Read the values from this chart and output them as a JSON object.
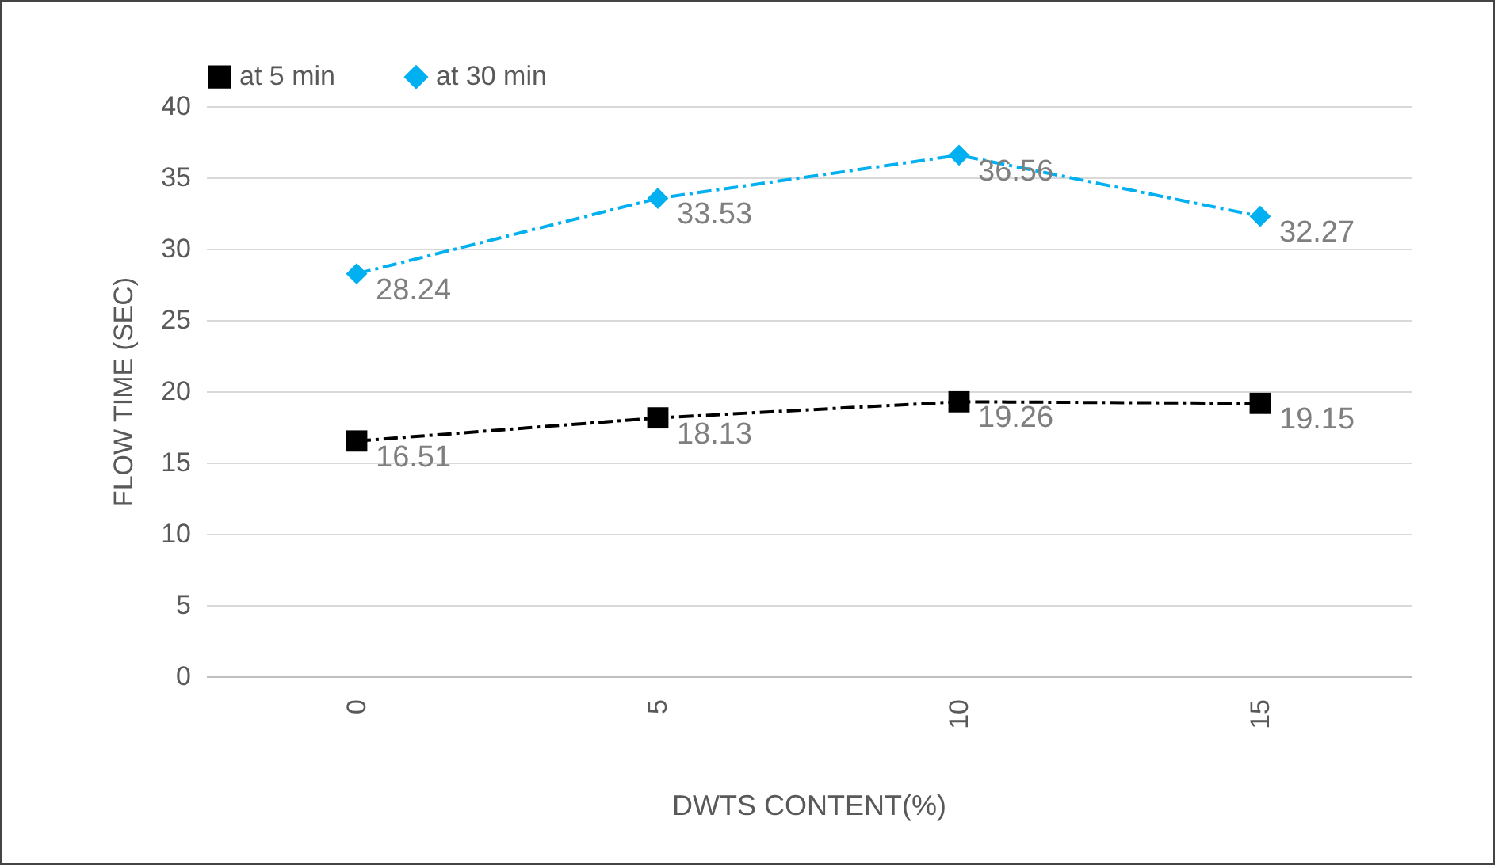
{
  "chart_data": {
    "type": "line",
    "xlabel": "DWTS CONTENT(%)",
    "ylabel": "FLOW TIME (SEC)",
    "categories": [
      "0",
      "5",
      "10",
      "15"
    ],
    "series": [
      {
        "name": "at 5 min",
        "color": "#000000",
        "marker": "square",
        "values": [
          16.51,
          18.13,
          19.26,
          19.15
        ]
      },
      {
        "name": "at 30 min",
        "color": "#00b0f0",
        "marker": "diamond",
        "values": [
          28.24,
          33.53,
          36.56,
          32.27
        ]
      }
    ],
    "ylim": [
      0,
      40
    ],
    "yticks": [
      0,
      5,
      10,
      15,
      20,
      25,
      30,
      35,
      40
    ],
    "grid": "y",
    "legend": "top",
    "data_labels": true,
    "line_style": "dashed"
  }
}
